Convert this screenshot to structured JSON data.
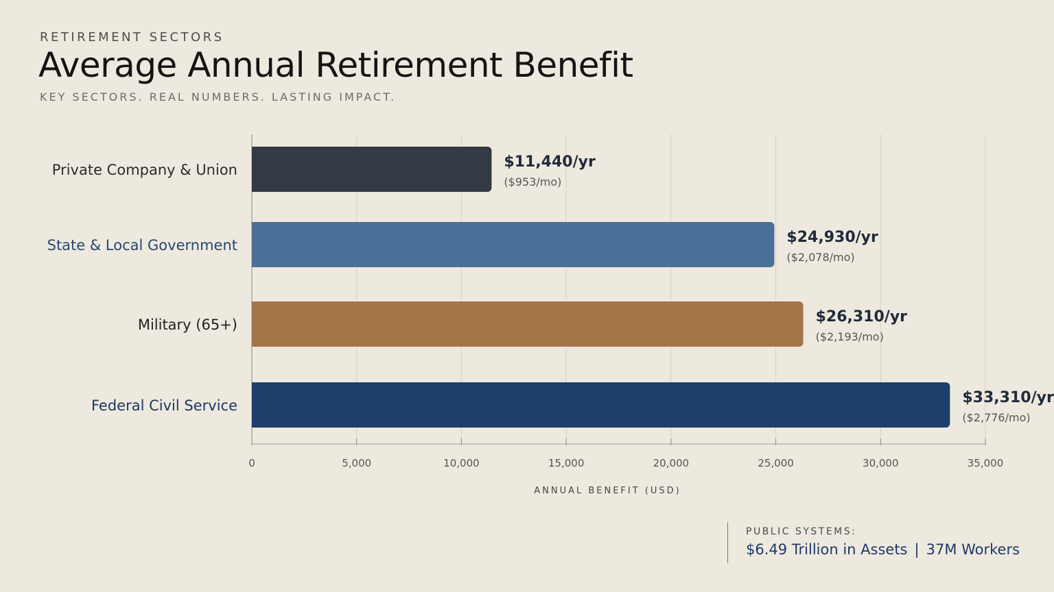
{
  "header": {
    "eyebrow": "RETIREMENT SECTORS",
    "title": "Average Annual Retirement Benefit",
    "subtitle": "KEY SECTORS. REAL NUMBERS. LASTING IMPACT."
  },
  "chart_data": {
    "type": "bar",
    "orientation": "horizontal",
    "categories": [
      "Private Company & Union",
      "State & Local Government",
      "Military (65+)",
      "Federal Civil Service"
    ],
    "values": [
      11440,
      24930,
      26310,
      33310
    ],
    "value_labels": [
      "$11,440/yr",
      "$24,930/yr",
      "$26,310/yr",
      "$33,310/yr"
    ],
    "monthly_labels": [
      "($953/mo)",
      "($2,078/mo)",
      "($2,193/mo)",
      "($2,776/mo)"
    ],
    "colors": [
      "#343A44",
      "#4A6F98",
      "#A27646",
      "#1E3E6C"
    ],
    "label_colors": [
      "#2b2b2b",
      "#27476e",
      "#222222",
      "#1b3760"
    ],
    "xlabel": "ANNUAL BENEFIT (USD)",
    "xlim": [
      0,
      35000
    ],
    "ticks": [
      0,
      5000,
      10000,
      15000,
      20000,
      25000,
      30000,
      35000
    ],
    "tick_labels": [
      "0",
      "5,000",
      "10,000",
      "15,000",
      "20,000",
      "25,000",
      "30,000",
      "35,000"
    ],
    "grid": true
  },
  "footer": {
    "label": "PUBLIC SYSTEMS:",
    "assets": "$6.49 Trillion in Assets",
    "separator": "|",
    "workers": "37M Workers"
  }
}
